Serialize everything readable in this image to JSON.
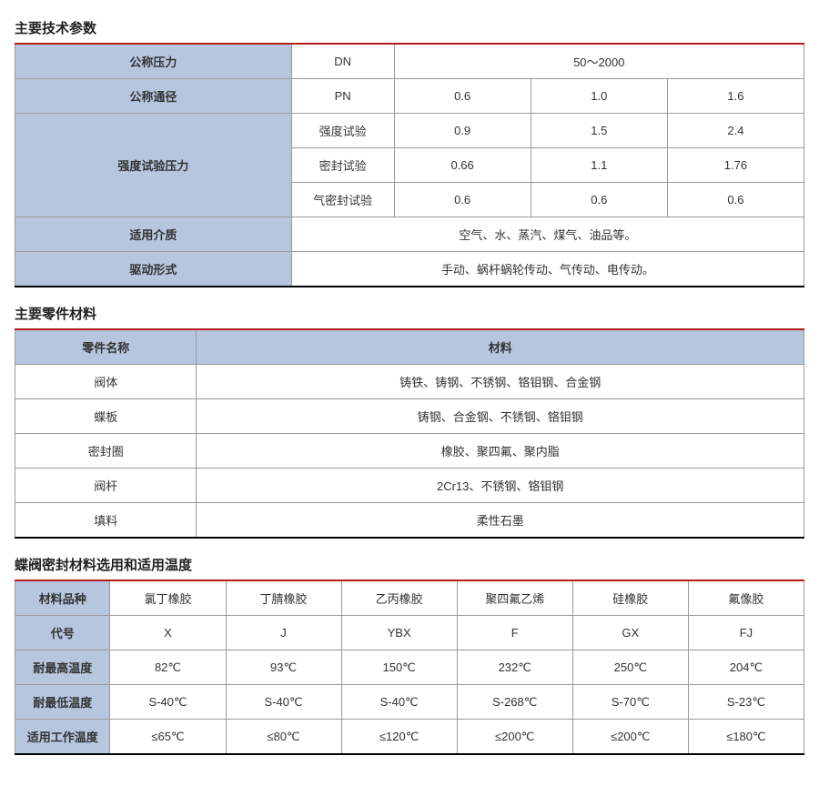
{
  "colors": {
    "header_bg": "#b7c6df",
    "border": "#9a9a9a",
    "top_border": "#b71c1c",
    "bottom_border": "#000000",
    "title_text": "#222222",
    "body_text": "#333333"
  },
  "typography": {
    "font_family": "Microsoft YaHei / PingFang SC / Arial",
    "title_fontsize_pt": 11,
    "cell_fontsize_pt": 10
  },
  "sections": {
    "tech": {
      "title": "主要技术参数",
      "rows": {
        "r1": {
          "label": "公称压力",
          "col2": "DN",
          "merged": "50～2000"
        },
        "r2": {
          "label": "公称通径",
          "col2": "PN",
          "v1": "0.6",
          "v2": "1.0",
          "v3": "1.6"
        },
        "group_label": "强度试验压力",
        "r3": {
          "col2": "强度试验",
          "v1": "0.9",
          "v2": "1.5",
          "v3": "2.4"
        },
        "r4": {
          "col2": "密封试验",
          "v1": "0.66",
          "v2": "1.1",
          "v3": "1.76"
        },
        "r5": {
          "col2": "气密封试验",
          "v1": "0.6",
          "v2": "0.6",
          "v3": "0.6"
        },
        "r6": {
          "label": "适用介质",
          "val": "空气、水、蒸汽、煤气、油品等。"
        },
        "r7": {
          "label": "驱动形式",
          "val": "手动、蜗杆蜗轮传动、气传动、电传动。"
        }
      }
    },
    "parts": {
      "title": "主要零件材料",
      "header": {
        "c1": "零件名称",
        "c2": "材料"
      },
      "rows": [
        {
          "name": "阀体",
          "material": "铸铁、铸钢、不锈钢、铬钼钢、合金钢"
        },
        {
          "name": "蝶板",
          "material": "铸钢、合金钢、不锈钢、铬钼钢"
        },
        {
          "name": "密封圈",
          "material": "橡胶、聚四氟、聚内脂"
        },
        {
          "name": "阀杆",
          "material": "2Cr13、不锈钢、铬钼钢"
        },
        {
          "name": "填料",
          "material": "柔性石墨"
        }
      ]
    },
    "seal": {
      "title": "蝶阀密封材料选用和适用温度",
      "row_labels": {
        "material": "材料品种",
        "code": "代号",
        "max": "耐最高温度",
        "min": "耐最低温度",
        "work": "适用工作温度"
      },
      "cols": [
        {
          "material": "氯丁橡胶",
          "code": "X",
          "max": "82℃",
          "min": "S-40℃",
          "work": "≤65℃"
        },
        {
          "material": "丁腈橡胶",
          "code": "J",
          "max": "93℃",
          "min": "S-40℃",
          "work": "≤80℃"
        },
        {
          "material": "乙丙橡胶",
          "code": "YBX",
          "max": "150℃",
          "min": "S-40℃",
          "work": "≤120℃"
        },
        {
          "material": "聚四氟乙烯",
          "code": "F",
          "max": "232℃",
          "min": "S-268℃",
          "work": "≤200℃"
        },
        {
          "material": "硅橡胶",
          "code": "GX",
          "max": "250℃",
          "min": "S-70℃",
          "work": "≤200℃"
        },
        {
          "material": "氟像胶",
          "code": "FJ",
          "max": "204℃",
          "min": "S-23℃",
          "work": "≤180℃"
        }
      ]
    }
  }
}
